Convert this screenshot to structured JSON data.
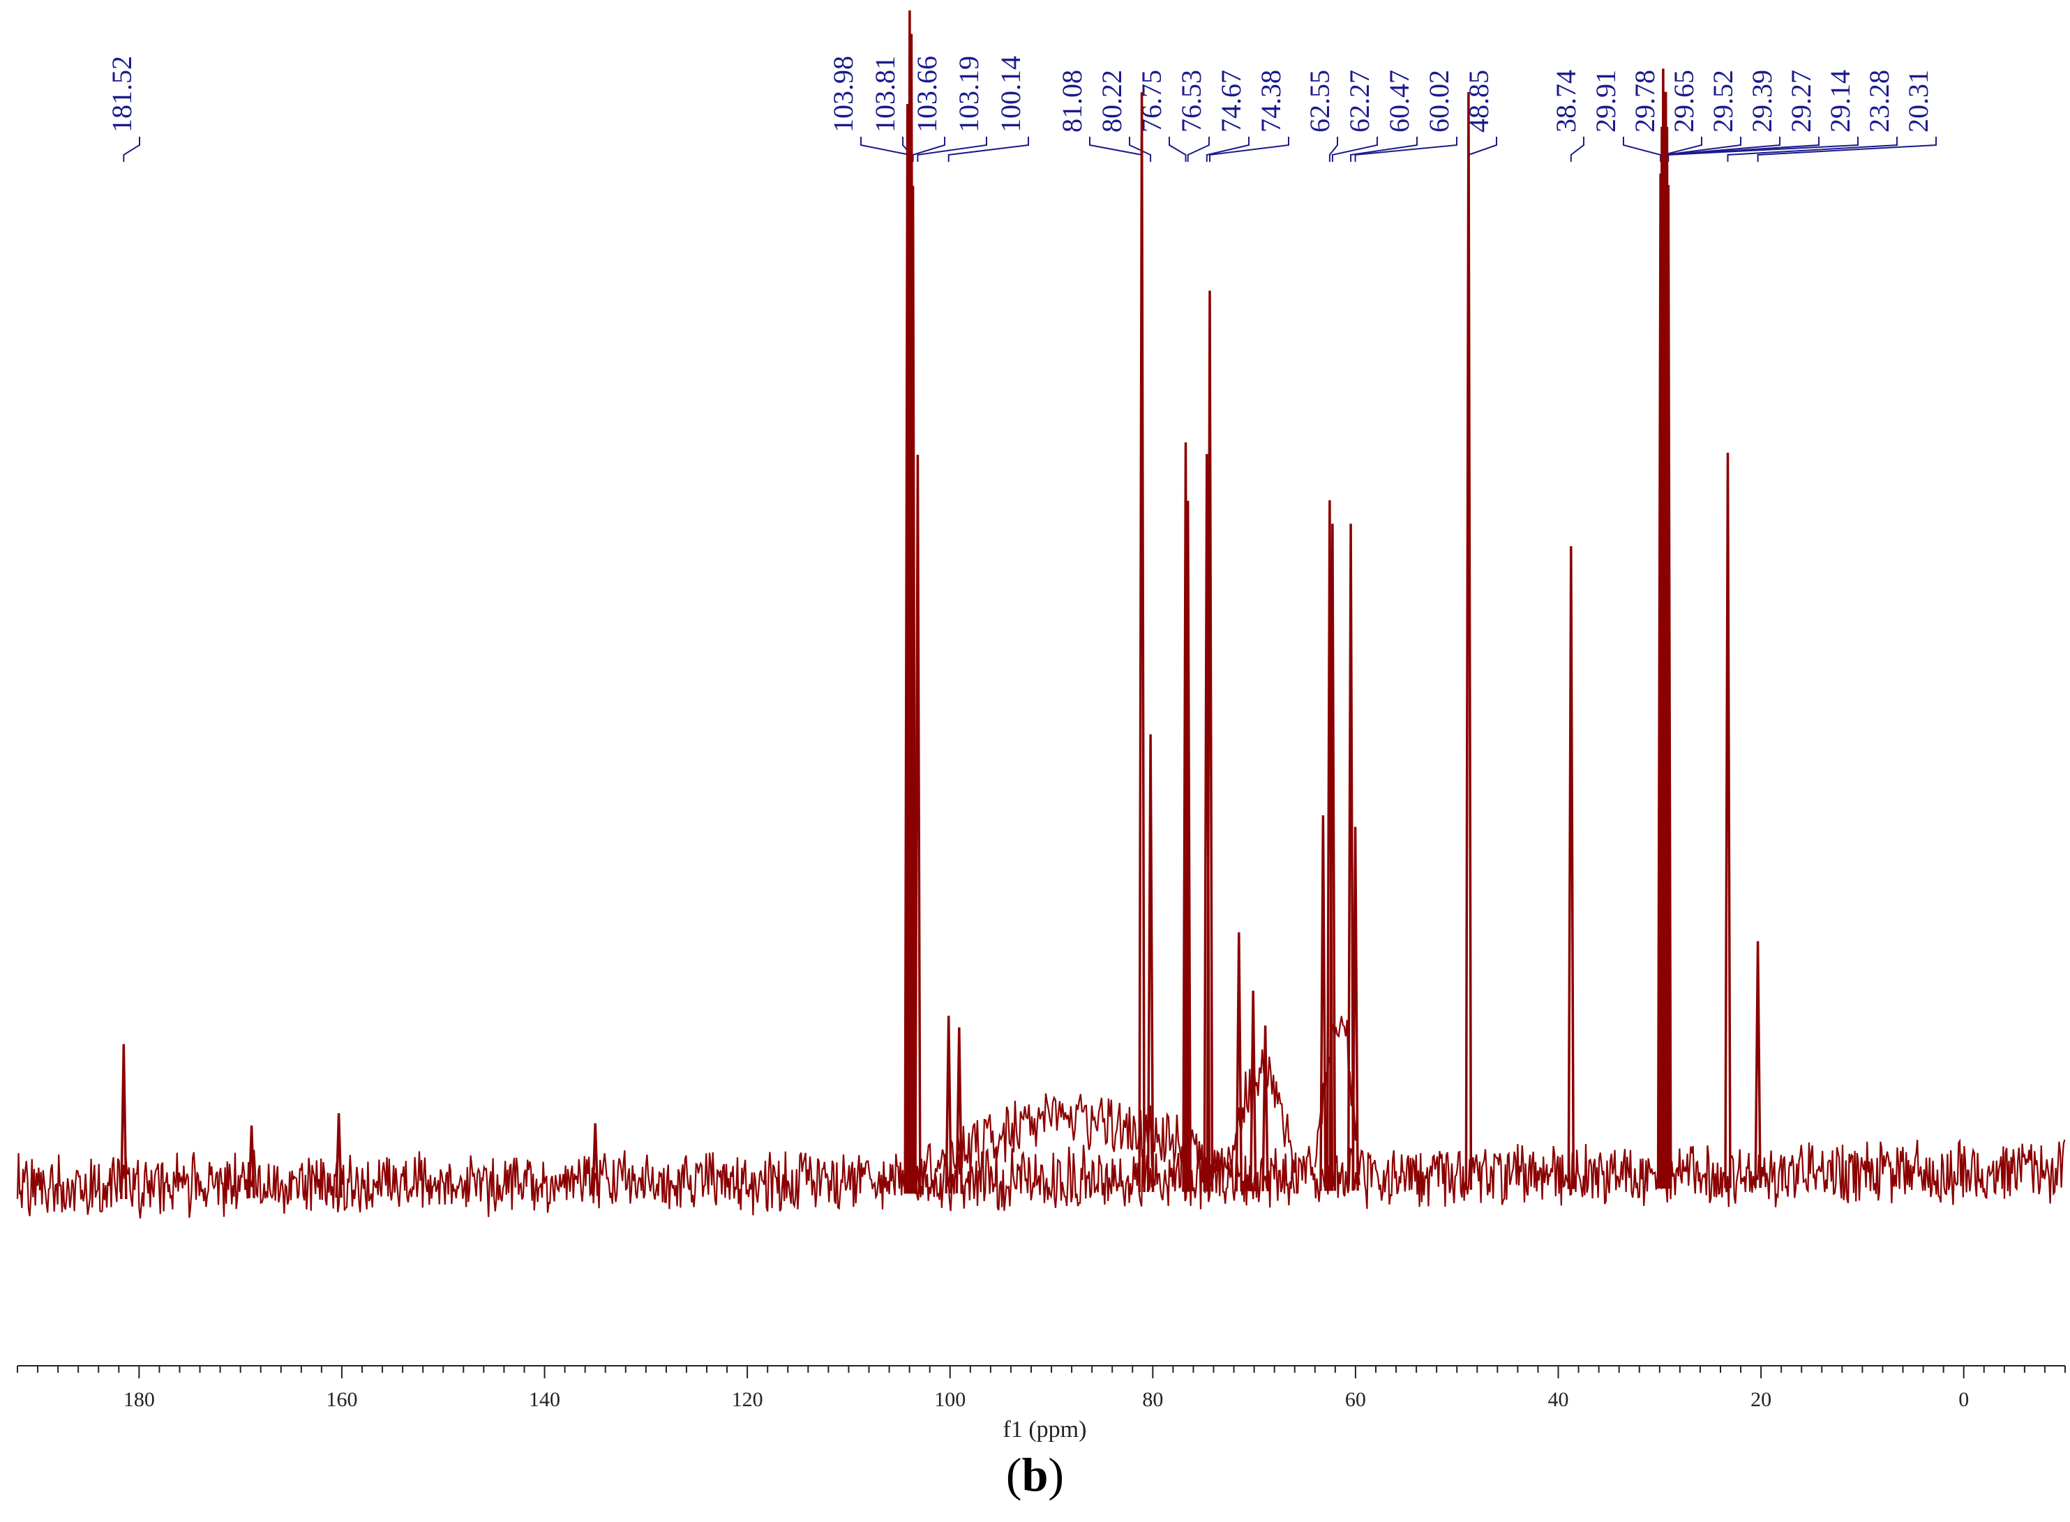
{
  "chart_data": {
    "type": "line",
    "xlabel": "f1 (ppm)",
    "ylabel": "",
    "xlim": [
      192,
      -10
    ],
    "x_reversed": true,
    "x_ticks": [
      180,
      160,
      140,
      120,
      100,
      80,
      60,
      40,
      20,
      0
    ],
    "grid": false,
    "peak_labels": [
      "181.52",
      "103.98",
      "103.81",
      "103.66",
      "103.19",
      "100.14",
      "81.08",
      "80.22",
      "76.75",
      "76.53",
      "74.67",
      "74.38",
      "62.55",
      "62.27",
      "60.47",
      "60.02",
      "48.85",
      "38.74",
      "29.91",
      "29.78",
      "29.65",
      "29.52",
      "29.39",
      "29.27",
      "29.14",
      "23.28",
      "20.31"
    ],
    "peaks": [
      {
        "ppm": 181.52,
        "intensity": 0.12
      },
      {
        "ppm": 168.9,
        "intensity": 0.05
      },
      {
        "ppm": 160.3,
        "intensity": 0.06
      },
      {
        "ppm": 135.0,
        "intensity": 0.05
      },
      {
        "ppm": 104.2,
        "intensity": 0.92
      },
      {
        "ppm": 103.98,
        "intensity": 1.0
      },
      {
        "ppm": 103.81,
        "intensity": 0.98
      },
      {
        "ppm": 103.66,
        "intensity": 0.85
      },
      {
        "ppm": 103.19,
        "intensity": 0.62
      },
      {
        "ppm": 100.14,
        "intensity": 0.14
      },
      {
        "ppm": 99.1,
        "intensity": 0.13
      },
      {
        "ppm": 81.08,
        "intensity": 0.93
      },
      {
        "ppm": 80.22,
        "intensity": 0.38
      },
      {
        "ppm": 76.75,
        "intensity": 0.63
      },
      {
        "ppm": 76.53,
        "intensity": 0.58
      },
      {
        "ppm": 74.67,
        "intensity": 0.62
      },
      {
        "ppm": 74.38,
        "intensity": 0.76
      },
      {
        "ppm": 71.5,
        "intensity": 0.21
      },
      {
        "ppm": 70.1,
        "intensity": 0.16
      },
      {
        "ppm": 68.9,
        "intensity": 0.13
      },
      {
        "ppm": 63.2,
        "intensity": 0.31
      },
      {
        "ppm": 62.55,
        "intensity": 0.58
      },
      {
        "ppm": 62.27,
        "intensity": 0.56
      },
      {
        "ppm": 60.47,
        "intensity": 0.56
      },
      {
        "ppm": 60.02,
        "intensity": 0.3
      },
      {
        "ppm": 48.85,
        "intensity": 0.93
      },
      {
        "ppm": 38.74,
        "intensity": 0.54
      },
      {
        "ppm": 29.91,
        "intensity": 0.86
      },
      {
        "ppm": 29.78,
        "intensity": 0.9
      },
      {
        "ppm": 29.65,
        "intensity": 0.95
      },
      {
        "ppm": 29.52,
        "intensity": 0.93
      },
      {
        "ppm": 29.39,
        "intensity": 0.93
      },
      {
        "ppm": 29.27,
        "intensity": 0.9
      },
      {
        "ppm": 29.14,
        "intensity": 0.85
      },
      {
        "ppm": 23.28,
        "intensity": 0.62
      },
      {
        "ppm": 20.31,
        "intensity": 0.2
      }
    ],
    "baseline_tilt": "slightly rising from left to right",
    "line_color": "#8b0000",
    "label_color": "#1a1a8c"
  },
  "panel_label": {
    "open": "(",
    "letter": "b",
    "close": ")"
  }
}
